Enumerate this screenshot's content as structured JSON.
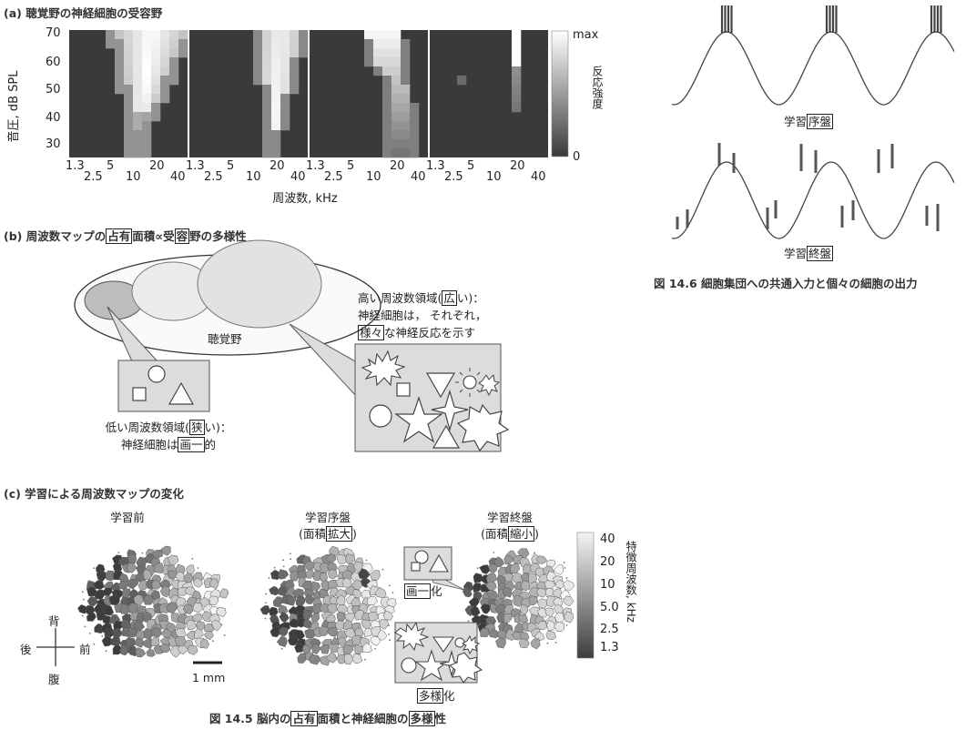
{
  "fig145": {
    "a": {
      "title": "(a) 聴覚野の神経細胞の受容野",
      "ylabel": "音圧, dB SPL",
      "xlabel": "周波数, kHz",
      "colorbar_max": "max",
      "colorbar_min": "0",
      "colorbar_label": "反応強度"
    },
    "b": {
      "title_prefix": "(b) 周波数マップの",
      "title_box1": "占有",
      "title_mid": "面積∝受",
      "title_box2": "容",
      "title_suffix": "野の多様性",
      "auditory_cortex": "聴覚野",
      "high_line1_pre": "高い周波数領域(",
      "high_line1_box": "広",
      "high_line1_post": "い)：",
      "high_line2": "神経細胞は，  それぞれ，",
      "high_line3_box": "様々",
      "high_line3_post": "な神経反応を示す",
      "low_line1_pre": "低い周波数領域(",
      "low_line1_box": "狭",
      "low_line1_post": "い)：",
      "low_line2_pre": "神経細胞は",
      "low_line2_box": "画一",
      "low_line2_post": "的"
    },
    "c": {
      "title": "(c) 学習による周波数マップの変化",
      "before": "学習前",
      "early": "学習序盤",
      "early_sub_pre": "(面積",
      "early_sub_box": "拡大",
      "early_sub_post": ")",
      "late": "学習終盤",
      "late_sub_pre": "(面積",
      "late_sub_box": "縮小",
      "late_sub_post": ")",
      "uniform_box": "画一",
      "uniform_post": "化",
      "diverse_box": "多様",
      "diverse_post": "化",
      "dorsal": "背",
      "ventral": "腹",
      "posterior": "後",
      "anterior": "前",
      "scale": "1 mm",
      "colorbar_label": "特徴周波数, kHz",
      "colorbar_ticks": [
        "40",
        "20",
        "10",
        "5.0",
        "2.5",
        "1.3"
      ]
    },
    "caption_pre": "図 14.5  脳内の",
    "caption_box1": "占有",
    "caption_mid": "面積と神経細胞の",
    "caption_box2": "多様",
    "caption_post": "性"
  },
  "fig146": {
    "early_pre": "学習",
    "early_box": "序盤",
    "late_pre": "学習",
    "late_box": "終盤",
    "caption": "図 14.6  細胞集団への共通入力と個々の細胞の出力"
  },
  "chart_data": {
    "type": "heatmap",
    "title": "(a) 聴覚野の神経細胞の受容野",
    "xlabel": "周波数, kHz",
    "ylabel": "音圧, dB SPL",
    "x_ticks": [
      "1.3",
      "2.5",
      "5",
      "10",
      "20",
      "40"
    ],
    "y_ticks": [
      "30",
      "40",
      "50",
      "60",
      "70"
    ],
    "ylim": [
      27,
      72
    ],
    "color_scale": [
      "0",
      "max"
    ],
    "panels": 4
  }
}
